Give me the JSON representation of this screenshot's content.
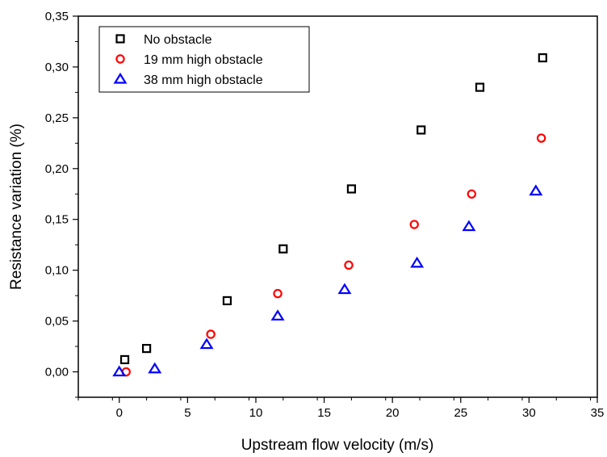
{
  "chart_data": {
    "type": "scatter",
    "xlabel": "Upstream flow velocity (m/s)",
    "ylabel": "Resistance variation (%)",
    "xlim": [
      -3,
      35
    ],
    "ylim": [
      -0.025,
      0.35
    ],
    "xticks": [
      0,
      5,
      10,
      15,
      20,
      25,
      30,
      35
    ],
    "yticks": [
      0.0,
      0.05,
      0.1,
      0.15,
      0.2,
      0.25,
      0.3,
      0.35
    ],
    "xtick_labels": [
      "0",
      "5",
      "10",
      "15",
      "20",
      "25",
      "30",
      "35"
    ],
    "ytick_labels": [
      "0,00",
      "0,05",
      "0,10",
      "0,15",
      "0,20",
      "0,25",
      "0,30",
      "0,35"
    ],
    "legend_position": "top-left",
    "grid": false,
    "series": [
      {
        "name": "No obstacle",
        "marker": "square",
        "color": "#000000",
        "x": [
          0.4,
          2.0,
          7.9,
          12.0,
          17.0,
          22.1,
          26.4,
          31.0
        ],
        "y": [
          0.012,
          0.023,
          0.07,
          0.121,
          0.18,
          0.238,
          0.28,
          0.309
        ]
      },
      {
        "name": "19 mm high obstacle",
        "marker": "circle",
        "color": "#ff0000",
        "x": [
          0.5,
          6.7,
          11.6,
          16.8,
          21.6,
          25.8,
          30.9
        ],
        "y": [
          0.0,
          0.037,
          0.077,
          0.105,
          0.145,
          0.175,
          0.23
        ]
      },
      {
        "name": "38 mm high obstacle",
        "marker": "triangle",
        "color": "#0000ff",
        "x": [
          0.0,
          2.6,
          6.4,
          11.6,
          16.5,
          21.8,
          25.6,
          30.5
        ],
        "y": [
          0.0,
          0.003,
          0.027,
          0.055,
          0.081,
          0.107,
          0.143,
          0.178
        ]
      }
    ]
  }
}
